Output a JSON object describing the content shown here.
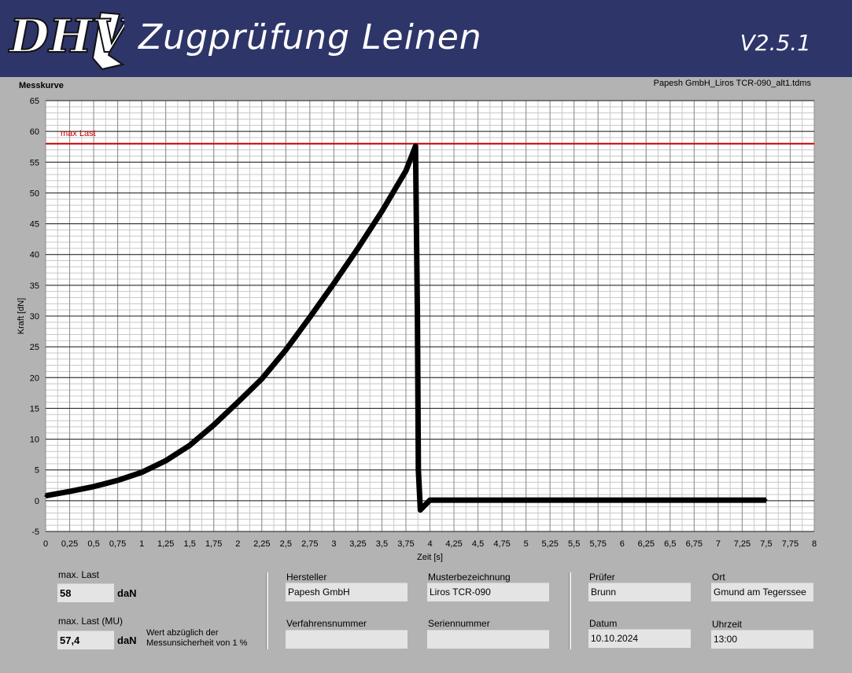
{
  "header": {
    "logo_text": "DHV",
    "title": "Zugprüfung Leinen",
    "version": "V2.5.1"
  },
  "plot": {
    "label": "Messkurve",
    "file": "Papesh GmbH_Liros TCR-090_alt1.tdms",
    "ref_line_label": "max Last"
  },
  "chart_data": {
    "type": "line",
    "xlabel": "Zeit [s]",
    "ylabel": "Kraft [dN]",
    "xlim": [
      0,
      8
    ],
    "ylim": [
      -5,
      65
    ],
    "x_ticks": [
      "0",
      "0,25",
      "0,5",
      "0,75",
      "1",
      "1,25",
      "1,5",
      "1,75",
      "2",
      "2,25",
      "2,5",
      "2,75",
      "3",
      "3,25",
      "3,5",
      "3,75",
      "4",
      "4,25",
      "4,5",
      "4,75",
      "5",
      "5,25",
      "5,5",
      "5,75",
      "6",
      "6,25",
      "6,5",
      "6,75",
      "7",
      "7,25",
      "7,5",
      "7,75",
      "8"
    ],
    "y_ticks": [
      "-5",
      "0",
      "5",
      "10",
      "15",
      "20",
      "25",
      "30",
      "35",
      "40",
      "45",
      "50",
      "55",
      "60",
      "65"
    ],
    "grid": true,
    "reference_line": {
      "name": "max Last",
      "y": 58,
      "color": "#cc0000"
    },
    "series": [
      {
        "color": "#000000",
        "x": [
          0,
          0.25,
          0.5,
          0.75,
          1.0,
          1.25,
          1.5,
          1.75,
          2.0,
          2.25,
          2.5,
          2.75,
          3.0,
          3.25,
          3.5,
          3.75,
          3.85,
          3.87,
          3.88,
          3.9,
          4.0,
          5.0,
          6.0,
          7.0,
          7.5
        ],
        "y": [
          0.8,
          1.5,
          2.3,
          3.3,
          4.6,
          6.5,
          9.0,
          12.3,
          16.0,
          19.8,
          24.5,
          29.8,
          35.3,
          41.0,
          47.0,
          53.6,
          57.6,
          30,
          5,
          -1.5,
          0.1,
          0.1,
          0.1,
          0.1,
          0.1
        ]
      }
    ]
  },
  "results": {
    "max_last_label": "max. Last",
    "max_last_value": "58",
    "max_last_unit": "daN",
    "max_last_mu_label": "max. Last (MU)",
    "max_last_mu_value": "57,4",
    "max_last_mu_unit": "daN",
    "mu_note_line1": "Wert abzüglich der",
    "mu_note_line2": "Messunsicherheit von 1 %"
  },
  "info": {
    "hersteller_label": "Hersteller",
    "hersteller_value": "Papesh GmbH",
    "muster_label": "Musterbezeichnung",
    "muster_value": "Liros TCR-090",
    "verfahren_label": "Verfahrensnummer",
    "verfahren_value": "",
    "serien_label": "Seriennummer",
    "serien_value": "",
    "pruefer_label": "Prüfer",
    "pruefer_value": "Brunn",
    "ort_label": "Ort",
    "ort_value": "Gmund am Tegerssee",
    "datum_label": "Datum",
    "datum_value": "10.10.2024",
    "uhrzeit_label": "Uhrzeit",
    "uhrzeit_value": "13:00"
  }
}
